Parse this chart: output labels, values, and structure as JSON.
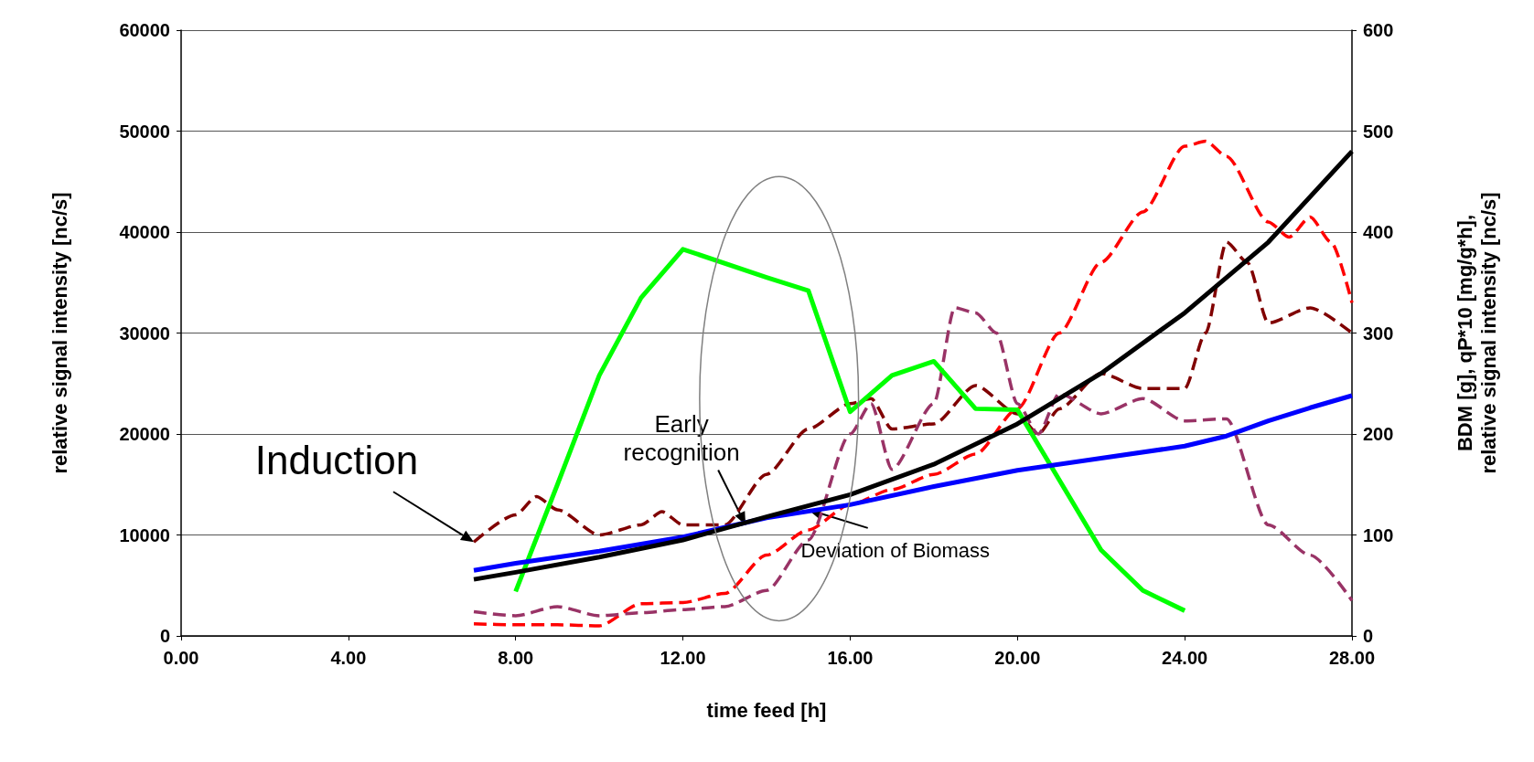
{
  "chart_data": {
    "type": "line",
    "xlabel": "time feed [h]",
    "ylabel": "relative signal intensity [nc/s]",
    "y2label": "BDM [g], qP*10 [mg/g*h],\nrelative signal intensity [nc/s]",
    "xlim": [
      0,
      28
    ],
    "xticks": [
      {
        "value": 0,
        "label": "0.00"
      },
      {
        "value": 4,
        "label": "4.00"
      },
      {
        "value": 8,
        "label": "8.00"
      },
      {
        "value": 12,
        "label": "12.00"
      },
      {
        "value": 16,
        "label": "16.00"
      },
      {
        "value": 20,
        "label": "20.00"
      },
      {
        "value": 24,
        "label": "24.00"
      },
      {
        "value": 28,
        "label": "28.00"
      }
    ],
    "ylim": [
      0,
      60000
    ],
    "yticks": [
      0,
      10000,
      20000,
      30000,
      40000,
      50000,
      60000
    ],
    "y2lim": [
      0,
      600
    ],
    "y2ticks": [
      0,
      100,
      200,
      300,
      400,
      500,
      600
    ],
    "grid": "y",
    "marker": "none",
    "series": [
      {
        "color": "#00ff00",
        "axis": "y2",
        "line_style": "solid",
        "x": [
          8,
          9,
          10,
          11,
          12,
          14,
          15,
          16,
          17,
          18,
          19,
          20,
          22,
          23,
          24
        ],
        "values": [
          44,
          150,
          258,
          335,
          383,
          355,
          342,
          222,
          258,
          272,
          225,
          224,
          85,
          45,
          25
        ]
      },
      {
        "color": "#0000ff",
        "axis": "y2",
        "line_style": "solid",
        "x": [
          7,
          8,
          10,
          12,
          14,
          16,
          18,
          20,
          22,
          24,
          25,
          26,
          27,
          28
        ],
        "values": [
          65,
          72,
          84,
          98,
          117,
          130,
          148,
          164,
          176,
          188,
          198,
          213,
          226,
          238
        ]
      },
      {
        "color": "#000000",
        "axis": "y2",
        "line_style": "solid",
        "x": [
          7,
          8,
          10,
          12,
          14,
          16,
          18,
          20,
          22,
          24,
          26,
          28
        ],
        "values": [
          56,
          63,
          78,
          95,
          118,
          140,
          170,
          210,
          260,
          320,
          390,
          480
        ]
      },
      {
        "color": "#ff0000",
        "line_style": "dashed",
        "x": [
          7,
          8,
          9,
          10,
          11,
          12,
          13,
          14,
          15,
          16,
          17,
          18,
          19,
          20,
          21,
          22,
          23,
          24,
          24.5,
          25,
          26,
          26.5,
          27,
          27.5,
          28
        ],
        "values": [
          1200,
          1100,
          1100,
          1000,
          3200,
          3300,
          4200,
          8000,
          10500,
          13000,
          14500,
          16000,
          18000,
          22500,
          30000,
          37000,
          42000,
          48500,
          49000,
          47500,
          41000,
          39500,
          41500,
          39000,
          33000
        ]
      },
      {
        "color": "#800000",
        "line_style": "dashed",
        "x": [
          7,
          8,
          8.5,
          9,
          10,
          11,
          11.5,
          12,
          13,
          14,
          15,
          16,
          16.5,
          17,
          18,
          19,
          20,
          20.5,
          21,
          22,
          23,
          24,
          24.5,
          25,
          25.5,
          26,
          27,
          28
        ],
        "values": [
          9300,
          12000,
          13800,
          12500,
          10000,
          11000,
          12300,
          11000,
          11000,
          16000,
          20500,
          23000,
          23500,
          20500,
          21000,
          24800,
          22000,
          20000,
          22500,
          26000,
          24500,
          24500,
          30000,
          39000,
          37000,
          31000,
          32500,
          30000
        ]
      },
      {
        "color": "#993366",
        "line_style": "dashed",
        "x": [
          7,
          8,
          9,
          10,
          11,
          12,
          13,
          14,
          15,
          16,
          16.5,
          17,
          18,
          18.5,
          19,
          19.5,
          20,
          20.5,
          21,
          22,
          23,
          24,
          25,
          26,
          27,
          28
        ],
        "values": [
          2400,
          2000,
          2900,
          2000,
          2300,
          2600,
          2900,
          4500,
          9500,
          20000,
          23000,
          16500,
          23000,
          32500,
          32000,
          30000,
          23000,
          20000,
          24000,
          22000,
          23500,
          21300,
          21500,
          11000,
          8000,
          3500
        ]
      }
    ],
    "annotations": [
      {
        "text": "Induction",
        "x": 7,
        "y": 9300
      },
      {
        "text": "Early\nrecognition",
        "x": 13.5,
        "y": 11000
      },
      {
        "text": "Deviation of Biomass",
        "x": 15,
        "y": 12500
      }
    ]
  }
}
